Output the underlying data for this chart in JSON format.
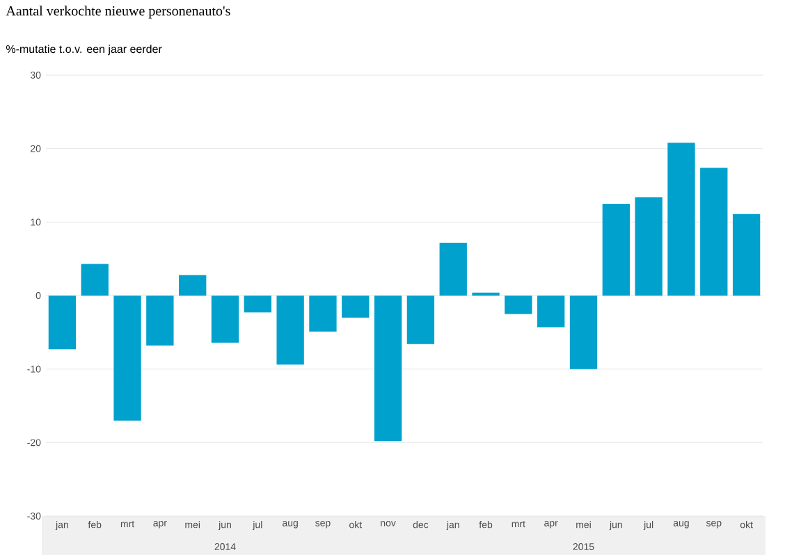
{
  "chart_data": {
    "type": "bar",
    "title": "Aantal verkochte nieuwe personenauto's",
    "subtitle": "%-mutatie t.o.v. een jaar eerder",
    "categories": [
      "jan",
      "feb",
      "mrt",
      "apr",
      "mei",
      "jun",
      "jul",
      "aug",
      "sep",
      "okt",
      "nov",
      "dec",
      "jan",
      "feb",
      "mrt",
      "apr",
      "mei",
      "jun",
      "jul",
      "aug",
      "sep",
      "okt"
    ],
    "values": [
      -7.3,
      4.3,
      -17.0,
      -6.8,
      2.8,
      -6.4,
      -2.3,
      -9.4,
      -4.9,
      -3.0,
      -19.8,
      -6.6,
      7.2,
      0.4,
      -2.5,
      -4.3,
      -10.0,
      12.5,
      13.4,
      20.8,
      17.4,
      11.1
    ],
    "color": "#00a1cd",
    "ylim": [
      -30,
      30
    ],
    "yticks": [
      -30,
      -20,
      -10,
      0,
      10,
      20,
      30
    ],
    "grid": "y",
    "legend": false,
    "annotations": [
      "2014",
      "2015"
    ]
  }
}
